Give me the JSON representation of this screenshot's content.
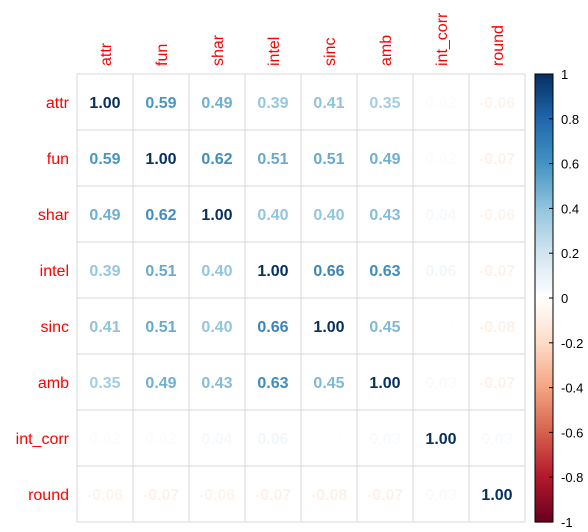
{
  "chart_data": {
    "type": "heatmap",
    "title": "",
    "variables": [
      "attr",
      "fun",
      "shar",
      "intel",
      "sinc",
      "amb",
      "int_corr",
      "round"
    ],
    "matrix": [
      [
        1.0,
        0.59,
        0.49,
        0.39,
        0.41,
        0.35,
        0.02,
        -0.06
      ],
      [
        0.59,
        1.0,
        0.62,
        0.51,
        0.51,
        0.49,
        0.02,
        -0.07
      ],
      [
        0.49,
        0.62,
        1.0,
        0.4,
        0.4,
        0.43,
        0.04,
        -0.06
      ],
      [
        0.39,
        0.51,
        0.4,
        1.0,
        0.66,
        0.63,
        0.06,
        -0.07
      ],
      [
        0.41,
        0.51,
        0.4,
        0.66,
        1.0,
        0.45,
        0.01,
        -0.08
      ],
      [
        0.35,
        0.49,
        0.43,
        0.63,
        0.45,
        1.0,
        0.03,
        -0.07
      ],
      [
        0.02,
        0.02,
        0.04,
        0.06,
        0.01,
        0.03,
        1.0,
        0.03
      ],
      [
        -0.06,
        -0.07,
        -0.06,
        -0.07,
        -0.08,
        -0.07,
        0.03,
        1.0
      ]
    ],
    "colorbar": {
      "range": [
        -1,
        1
      ],
      "ticks": [
        "1",
        "0.8",
        "0.6",
        "0.4",
        "0.2",
        "0",
        "-0.2",
        "-0.4",
        "-0.6",
        "-0.8",
        "-1"
      ],
      "stops": [
        "#67001F",
        "#B2182B",
        "#D6604D",
        "#F4A582",
        "#FDDBC7",
        "#FFFFFF",
        "#D1E5F0",
        "#92C5DE",
        "#4393C3",
        "#2166AC",
        "#053061"
      ]
    },
    "label_color": "#FF0000",
    "grid": true
  }
}
